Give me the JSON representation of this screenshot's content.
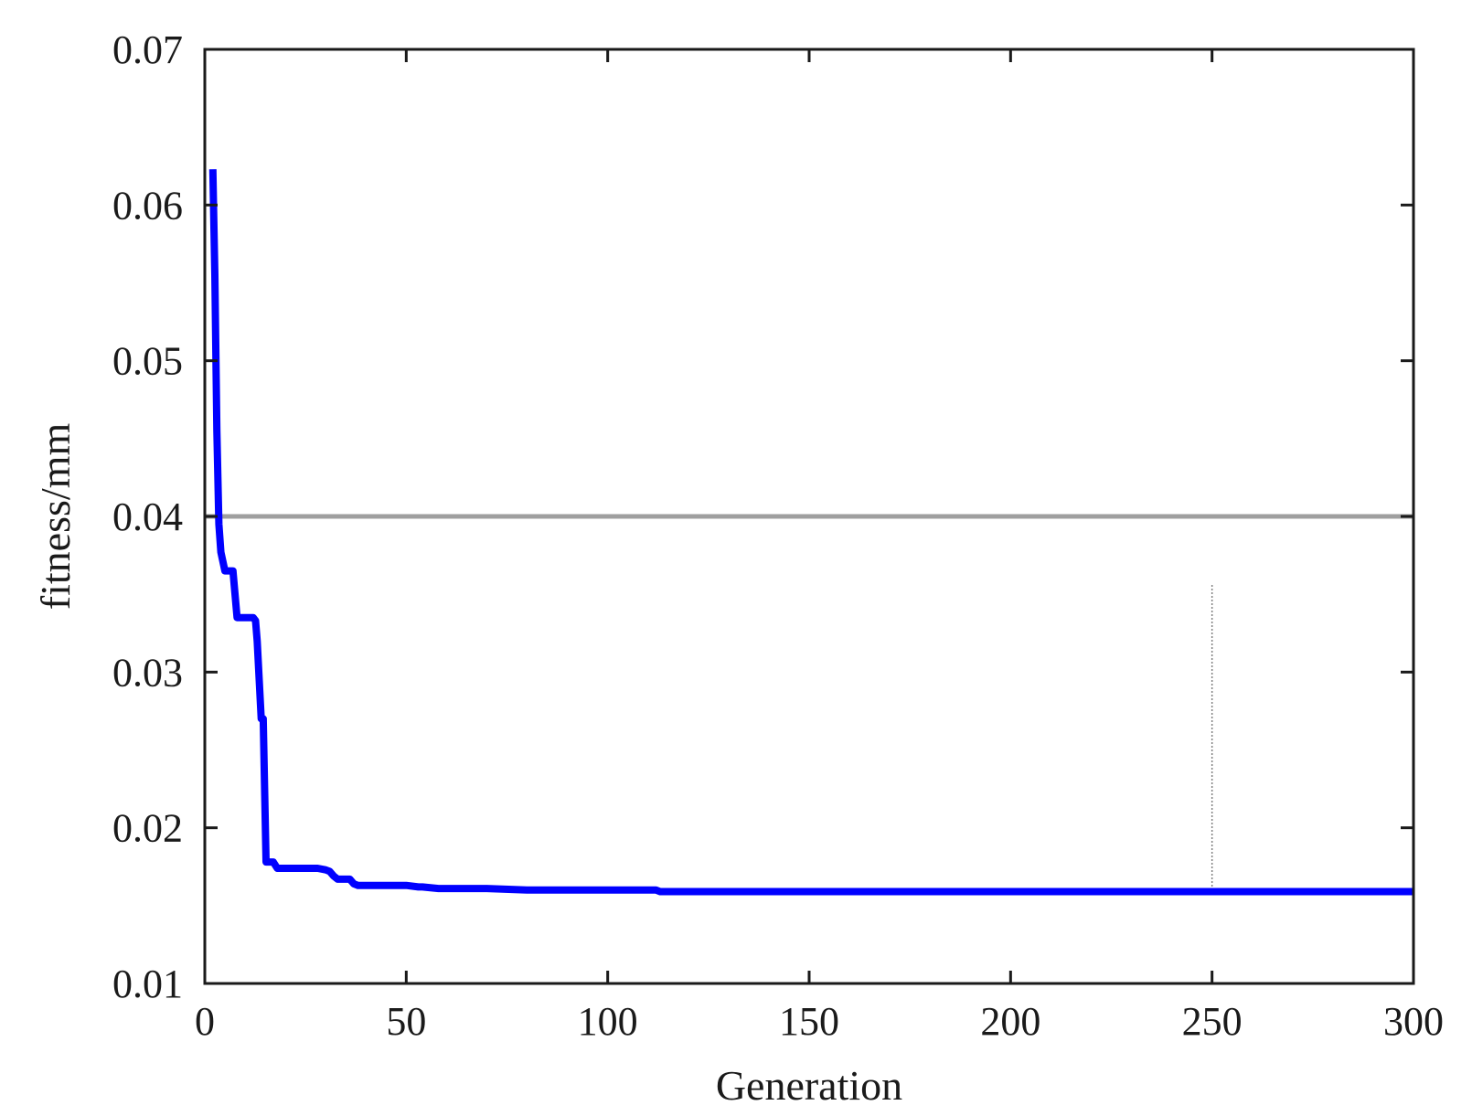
{
  "chart_data": {
    "type": "line",
    "title": "",
    "xlabel": "Generation",
    "ylabel": "fitness/mm",
    "xlim": [
      0,
      300
    ],
    "ylim": [
      0.01,
      0.07
    ],
    "xticks": [
      0,
      50,
      100,
      150,
      200,
      250,
      300
    ],
    "yticks": [
      0.01,
      0.02,
      0.03,
      0.04,
      0.05,
      0.06,
      0.07
    ],
    "xtick_labels": [
      "0",
      "50",
      "100",
      "150",
      "200",
      "250",
      "300"
    ],
    "ytick_labels": [
      "0.01",
      "0.02",
      "0.03",
      "0.04",
      "0.05",
      "0.06",
      "0.07"
    ],
    "grid": false,
    "legend": false,
    "series": [
      {
        "color": "#0000ff",
        "x": [
          2,
          2.5,
          3,
          3.5,
          4,
          5,
          7,
          8,
          9,
          11,
          12,
          12.6,
          13,
          14,
          14.5,
          15.2,
          16,
          17,
          18,
          19,
          28,
          30,
          31,
          32,
          33,
          35,
          36,
          37,
          38,
          40,
          50,
          53,
          54,
          58,
          60,
          70,
          80,
          100,
          112,
          113,
          150,
          200,
          250,
          300
        ],
        "y": [
          0.0623,
          0.0555,
          0.0455,
          0.0395,
          0.0377,
          0.0365,
          0.0365,
          0.0335,
          0.0335,
          0.0335,
          0.0335,
          0.0333,
          0.032,
          0.027,
          0.027,
          0.0178,
          0.0178,
          0.0178,
          0.0174,
          0.0174,
          0.0174,
          0.0173,
          0.0172,
          0.0169,
          0.0167,
          0.0167,
          0.0167,
          0.0164,
          0.0163,
          0.0163,
          0.0163,
          0.0162,
          0.0162,
          0.0161,
          0.0161,
          0.0161,
          0.016,
          0.016,
          0.016,
          0.0159,
          0.0159,
          0.0159,
          0.0159,
          0.0159
        ]
      }
    ],
    "reference_lines": [
      {
        "orientation": "horizontal",
        "value": 0.04,
        "color": "#808080"
      },
      {
        "orientation": "vertical",
        "value": 250,
        "y_range": [
          0.0159,
          0.0356
        ],
        "color": "#808080"
      }
    ]
  }
}
